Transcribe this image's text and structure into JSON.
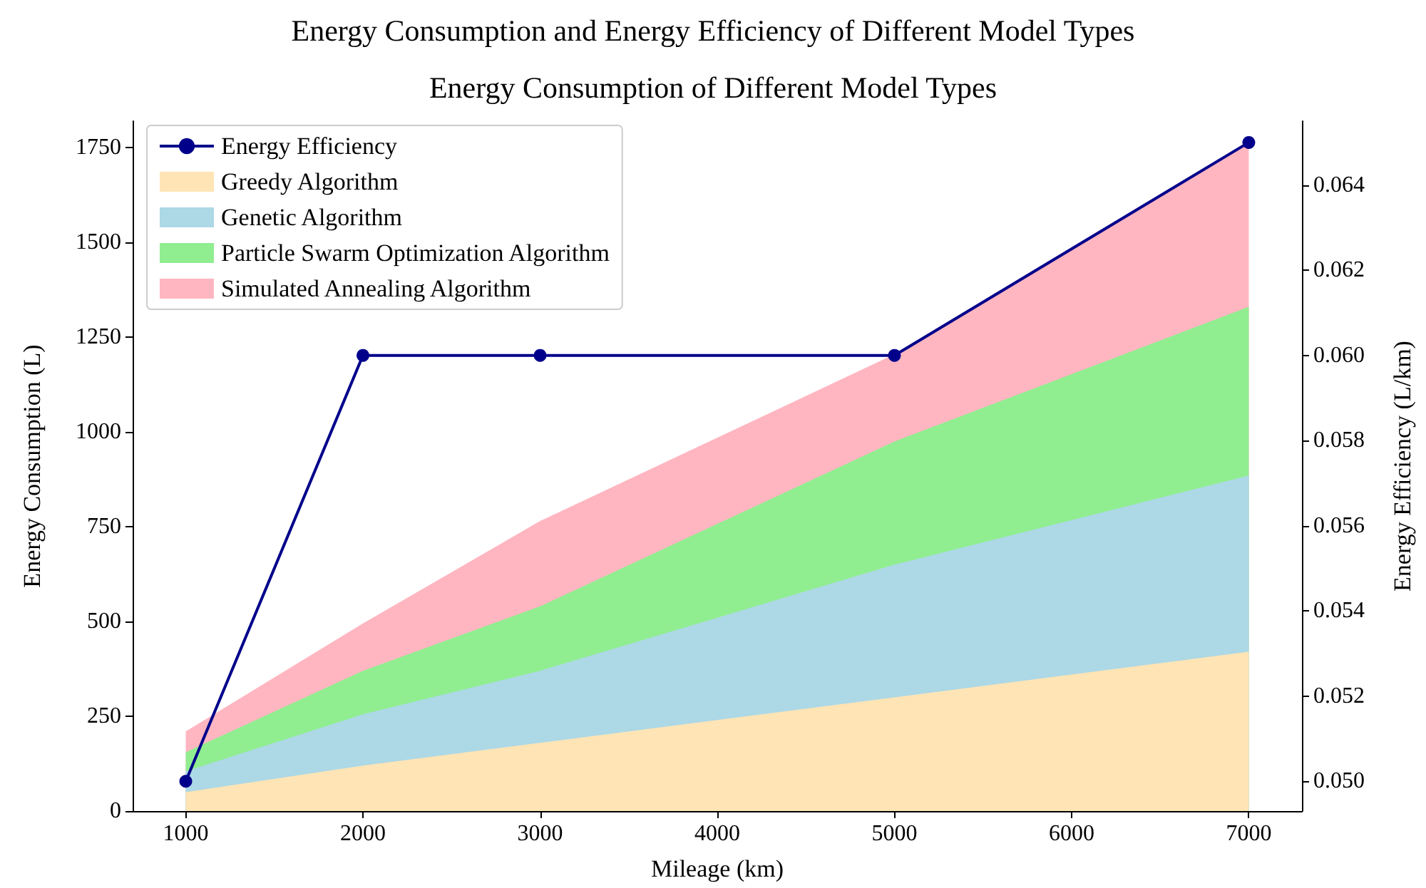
{
  "chart_data": {
    "type": "area",
    "title": "Energy Consumption and Energy Efficiency of Different Model Types",
    "subtitle": "Energy Consumption of Different Model Types",
    "xlabel": "Mileage (km)",
    "ylabel": "Energy Consumption (L)",
    "y2label": "Energy Efficiency (L/km)",
    "x": [
      1000,
      2000,
      3000,
      5000,
      7000
    ],
    "stacked": true,
    "series": [
      {
        "name": "Greedy Algorithm",
        "color": "#ffe4b5",
        "values": [
          50,
          120,
          180,
          300,
          420
        ]
      },
      {
        "name": "Genetic Algorithm",
        "color": "#add8e6",
        "values": [
          55,
          135,
          190,
          350,
          465
        ]
      },
      {
        "name": "Particle Swarm Optimization Algorithm",
        "color": "#90ee90",
        "values": [
          50,
          115,
          170,
          325,
          445
        ]
      },
      {
        "name": "Simulated Annealing Algorithm",
        "color": "#ffb6c1",
        "values": [
          55,
          125,
          225,
          230,
          430
        ]
      },
      {
        "name": "Energy Efficiency",
        "type": "line",
        "axis": "y2",
        "color": "#00008b",
        "marker": "circle",
        "values": [
          0.05,
          0.06,
          0.06,
          0.06,
          0.065
        ]
      }
    ],
    "xlim": [
      700,
      7300
    ],
    "xticks": [
      1000,
      2000,
      3000,
      4000,
      5000,
      6000,
      7000
    ],
    "ylim": [
      0,
      1820
    ],
    "yticks": [
      0,
      250,
      500,
      750,
      1000,
      1250,
      1500,
      1750
    ],
    "y2lim": [
      0.0493,
      0.0655
    ],
    "y2ticks": [
      {
        "value": 0.05,
        "label": "0.050"
      },
      {
        "value": 0.052,
        "label": "0.052"
      },
      {
        "value": 0.054,
        "label": "0.054"
      },
      {
        "value": 0.056,
        "label": "0.056"
      },
      {
        "value": 0.058,
        "label": "0.058"
      },
      {
        "value": 0.06,
        "label": "0.060"
      },
      {
        "value": 0.062,
        "label": "0.062"
      },
      {
        "value": 0.064,
        "label": "0.064"
      }
    ],
    "grid": false,
    "legend": "top left"
  }
}
